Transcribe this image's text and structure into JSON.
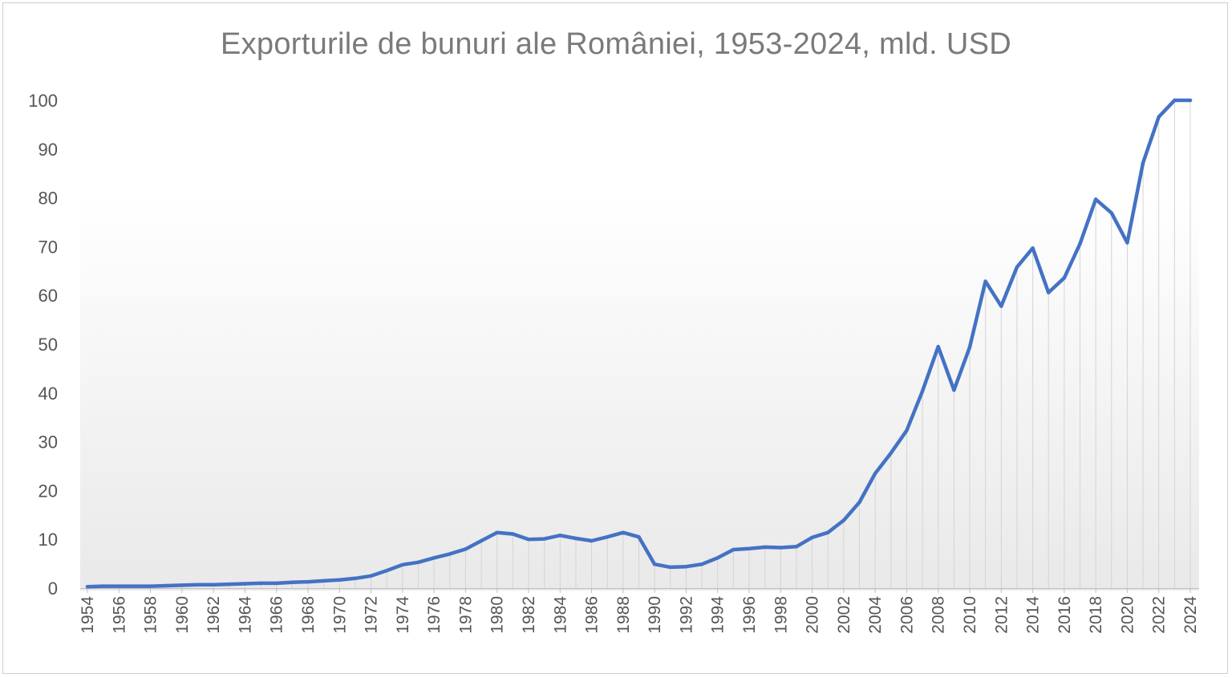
{
  "chart_data": {
    "type": "line",
    "title": "Exporturile de bunuri ale României, 1953-2024, mld. USD",
    "xlabel": "",
    "ylabel": "",
    "ylim": [
      0,
      100
    ],
    "yticks": [
      "0",
      "10",
      "20",
      "30",
      "40",
      "50",
      "60",
      "70",
      "80",
      "90",
      "100"
    ],
    "xticks": [
      "1954",
      "1956",
      "1958",
      "1960",
      "1962",
      "1964",
      "1966",
      "1968",
      "1970",
      "1972",
      "1974",
      "1976",
      "1978",
      "1980",
      "1982",
      "1984",
      "1986",
      "1988",
      "1990",
      "1992",
      "1994",
      "1996",
      "1998",
      "2000",
      "2002",
      "2004",
      "2006",
      "2008",
      "2010",
      "2012",
      "2014",
      "2016",
      "2018",
      "2020",
      "2022",
      "2024"
    ],
    "grid": "vertical drop lines",
    "legend": "none",
    "color": "#4472c4",
    "x": [
      1954,
      1955,
      1956,
      1957,
      1958,
      1959,
      1960,
      1961,
      1962,
      1963,
      1964,
      1965,
      1966,
      1967,
      1968,
      1969,
      1970,
      1971,
      1972,
      1973,
      1974,
      1975,
      1976,
      1977,
      1978,
      1979,
      1980,
      1981,
      1982,
      1983,
      1984,
      1985,
      1986,
      1987,
      1988,
      1989,
      1990,
      1991,
      1992,
      1993,
      1994,
      1995,
      1996,
      1997,
      1998,
      1999,
      2000,
      2001,
      2002,
      2003,
      2004,
      2005,
      2006,
      2007,
      2008,
      2009,
      2010,
      2011,
      2012,
      2013,
      2014,
      2015,
      2016,
      2017,
      2018,
      2019,
      2020,
      2021,
      2022,
      2023,
      2024
    ],
    "values": [
      0.3,
      0.4,
      0.4,
      0.4,
      0.4,
      0.5,
      0.6,
      0.7,
      0.7,
      0.8,
      0.9,
      1.0,
      1.0,
      1.2,
      1.3,
      1.5,
      1.7,
      2.0,
      2.5,
      3.6,
      4.8,
      5.3,
      6.2,
      7.0,
      8.0,
      9.7,
      11.4,
      11.1,
      10.0,
      10.1,
      10.8,
      10.2,
      9.7,
      10.5,
      11.4,
      10.5,
      4.9,
      4.3,
      4.4,
      4.9,
      6.2,
      7.9,
      8.1,
      8.4,
      8.3,
      8.5,
      10.4,
      11.4,
      13.9,
      17.6,
      23.5,
      27.7,
      32.3,
      40.4,
      49.5,
      40.6,
      49.4,
      62.9,
      57.8,
      65.8,
      69.7,
      60.6,
      63.6,
      70.6,
      79.7,
      76.9,
      70.8,
      87.2,
      96.6,
      100.0,
      100.0
    ]
  }
}
